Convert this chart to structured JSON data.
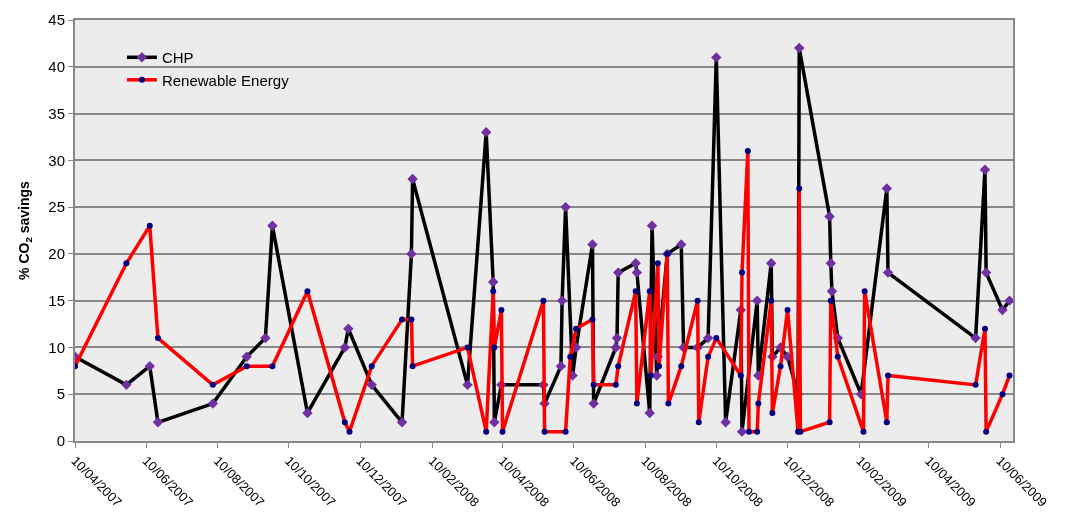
{
  "chart_data": {
    "type": "line",
    "ylabel": "% CO$_{2}$ savings",
    "xlim": [
      "2007-04-10",
      "2009-06-21"
    ],
    "ylim": [
      0,
      45
    ],
    "yticks": [
      0,
      5,
      10,
      15,
      20,
      25,
      30,
      35,
      40,
      45
    ],
    "xticks": [
      {
        "value": "2007-04-10",
        "label": "10/04/2007"
      },
      {
        "value": "2007-06-10",
        "label": "10/06/2007"
      },
      {
        "value": "2007-08-10",
        "label": "10/08/2007"
      },
      {
        "value": "2007-10-10",
        "label": "10/10/2007"
      },
      {
        "value": "2007-12-10",
        "label": "10/12/2007"
      },
      {
        "value": "2008-02-10",
        "label": "10/02/2008"
      },
      {
        "value": "2008-04-10",
        "label": "10/04/2008"
      },
      {
        "value": "2008-06-10",
        "label": "10/06/2008"
      },
      {
        "value": "2008-08-10",
        "label": "10/08/2008"
      },
      {
        "value": "2008-10-10",
        "label": "10/10/2008"
      },
      {
        "value": "2008-12-10",
        "label": "10/12/2008"
      },
      {
        "value": "2009-02-10",
        "label": "10/02/2009"
      },
      {
        "value": "2009-04-10",
        "label": "10/04/2009"
      },
      {
        "value": "2009-06-10",
        "label": "10/06/2009"
      }
    ],
    "grid": "y",
    "legend": "top left",
    "line_style": "solid",
    "series": [
      {
        "name": "CHP",
        "color": "#000000",
        "marker": "diamond",
        "x": [
          "2007-04-10",
          "2007-05-24",
          "2007-06-13",
          "2007-06-20",
          "2007-08-06",
          "2007-09-04",
          "2007-09-20",
          "2007-09-26",
          "2007-10-26",
          "2007-11-27",
          "2007-11-30",
          "2007-12-20",
          "2008-01-15",
          "2008-01-23",
          "2008-01-24",
          "2008-03-11",
          "2008-03-27",
          "2008-04-02",
          "2008-04-03",
          "2008-04-09",
          "2008-05-15",
          "2008-05-16",
          "2008-05-30",
          "2008-05-31",
          "2008-06-03",
          "2008-06-09",
          "2008-06-12",
          "2008-06-26",
          "2008-06-27",
          "2008-07-16",
          "2008-07-17",
          "2008-07-18",
          "2008-08-02",
          "2008-08-03",
          "2008-08-14",
          "2008-08-16",
          "2008-08-20",
          "2008-08-21",
          "2008-08-29",
          "2008-09-10",
          "2008-09-12",
          "2008-09-24",
          "2008-10-03",
          "2008-10-10",
          "2008-10-18",
          "2008-10-31",
          "2008-11-01",
          "2008-11-14",
          "2008-11-15",
          "2008-11-26",
          "2008-11-27",
          "2008-12-04",
          "2008-12-10",
          "2008-12-19",
          "2008-12-20",
          "2009-01-15",
          "2009-01-16",
          "2009-01-17",
          "2009-01-22",
          "2009-02-11",
          "2009-03-05",
          "2009-03-06",
          "2009-05-20",
          "2009-05-28",
          "2009-05-29",
          "2009-06-12",
          "2009-06-18"
        ],
        "values": [
          9,
          6,
          8,
          2,
          4,
          9,
          11,
          23,
          3,
          10,
          12,
          6,
          2,
          20,
          28,
          6,
          33,
          17,
          2,
          6,
          6,
          4,
          8,
          15,
          25,
          7,
          10,
          21,
          4,
          10,
          11,
          18,
          19,
          18,
          3,
          23,
          7,
          9,
          20,
          21,
          10,
          10,
          11,
          41,
          2,
          14,
          1,
          15,
          7,
          19,
          9,
          10,
          9,
          5,
          42,
          24,
          19,
          16,
          11,
          5,
          27,
          18,
          11,
          29,
          18,
          14,
          15
        ]
      },
      {
        "name": "Renewable Energy",
        "color": "#ff0000",
        "marker": "circle",
        "x": [
          "2007-04-10",
          "2007-05-24",
          "2007-06-13",
          "2007-06-20",
          "2007-08-06",
          "2007-09-04",
          "2007-09-26",
          "2007-10-26",
          "2007-11-27",
          "2007-12-01",
          "2007-12-20",
          "2008-01-15",
          "2008-01-23",
          "2008-01-24",
          "2008-03-11",
          "2008-03-27",
          "2008-04-02",
          "2008-04-03",
          "2008-04-09",
          "2008-04-10",
          "2008-05-15",
          "2008-05-16",
          "2008-06-03",
          "2008-06-07",
          "2008-06-12",
          "2008-06-26",
          "2008-06-27",
          "2008-07-16",
          "2008-07-18",
          "2008-08-02",
          "2008-08-03",
          "2008-08-14",
          "2008-08-15",
          "2008-08-21",
          "2008-08-22",
          "2008-08-29",
          "2008-08-30",
          "2008-09-10",
          "2008-09-24",
          "2008-09-25",
          "2008-10-03",
          "2008-10-10",
          "2008-10-31",
          "2008-11-01",
          "2008-11-06",
          "2008-11-07",
          "2008-11-14",
          "2008-11-15",
          "2008-11-26",
          "2008-11-27",
          "2008-12-04",
          "2008-12-10",
          "2008-12-19",
          "2008-12-20",
          "2008-12-21",
          "2009-01-15",
          "2009-01-16",
          "2009-01-22",
          "2009-02-13",
          "2009-02-14",
          "2009-03-05",
          "2009-03-06",
          "2009-05-20",
          "2009-05-28",
          "2009-05-29",
          "2009-06-12",
          "2009-06-18"
        ],
        "values": [
          8,
          19,
          23,
          11,
          6,
          8,
          8,
          16,
          2,
          1,
          8,
          13,
          13,
          8,
          10,
          1,
          16,
          10,
          14,
          1,
          15,
          1,
          1,
          9,
          12,
          13,
          6,
          6,
          8,
          16,
          4,
          16,
          7,
          19,
          8,
          20,
          4,
          8,
          15,
          2,
          9,
          11,
          7,
          18,
          31,
          1,
          1,
          4,
          15,
          3,
          8,
          14,
          1,
          27,
          1,
          2,
          15,
          9,
          1,
          16,
          2,
          7,
          6,
          12,
          1,
          5,
          7
        ]
      }
    ]
  }
}
